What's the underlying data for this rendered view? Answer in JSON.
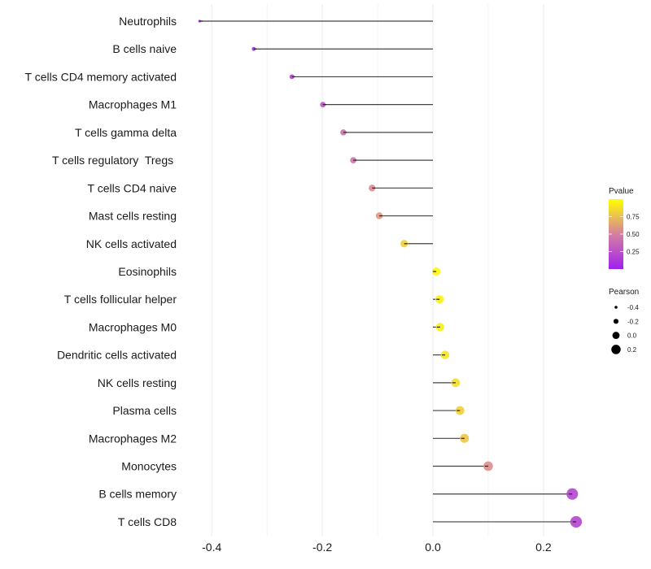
{
  "chart_data": {
    "type": "lollipop",
    "title": "",
    "xlabel": "",
    "ylabel": "",
    "xlim": [
      -0.44,
      0.275
    ],
    "x_ticks": [
      -0.4,
      -0.2,
      0.0,
      0.2
    ],
    "x_tick_labels": [
      "-0.4",
      "-0.2",
      "0.0",
      "0.2"
    ],
    "grid": true,
    "categories": [
      "Neutrophils",
      "B cells naive",
      "T cells CD4 memory activated",
      "Macrophages M1",
      "T cells gamma delta",
      "T cells regulatory  Tregs ",
      "T cells CD4 naive",
      "Mast cells resting",
      "NK cells activated",
      "Eosinophils",
      "T cells follicular helper",
      "Macrophages M0",
      "Dendritic cells activated",
      "NK cells resting",
      "Plasma cells",
      "Macrophages M2",
      "Monocytes",
      "B cells memory",
      "T cells CD8"
    ],
    "pearson": [
      -0.422,
      -0.324,
      -0.255,
      -0.199,
      -0.162,
      -0.144,
      -0.11,
      -0.097,
      -0.052,
      0.006,
      0.012,
      0.013,
      0.022,
      0.041,
      0.049,
      0.057,
      0.1,
      0.252,
      0.259
    ],
    "pvalue": [
      0.02,
      0.08,
      0.18,
      0.28,
      0.42,
      0.45,
      0.55,
      0.6,
      0.82,
      0.97,
      0.95,
      0.94,
      0.9,
      0.86,
      0.82,
      0.78,
      0.56,
      0.2,
      0.19
    ],
    "legend_color": {
      "title": "Pvalue",
      "ticks": [
        "0.75",
        "0.50",
        "0.25"
      ],
      "tick_values": [
        0.75,
        0.5,
        0.25
      ],
      "range": [
        0.0,
        1.0
      ],
      "low_color": "#A020F0",
      "mid_color": "#D580A0",
      "high_color": "#FFFF00",
      "position": "right"
    },
    "legend_size": {
      "title": "Pearson",
      "labels": [
        "-0.4",
        "-0.2",
        "0.0",
        "0.2"
      ],
      "values": [
        -0.4,
        -0.2,
        0.0,
        0.2
      ],
      "position": "right"
    }
  }
}
